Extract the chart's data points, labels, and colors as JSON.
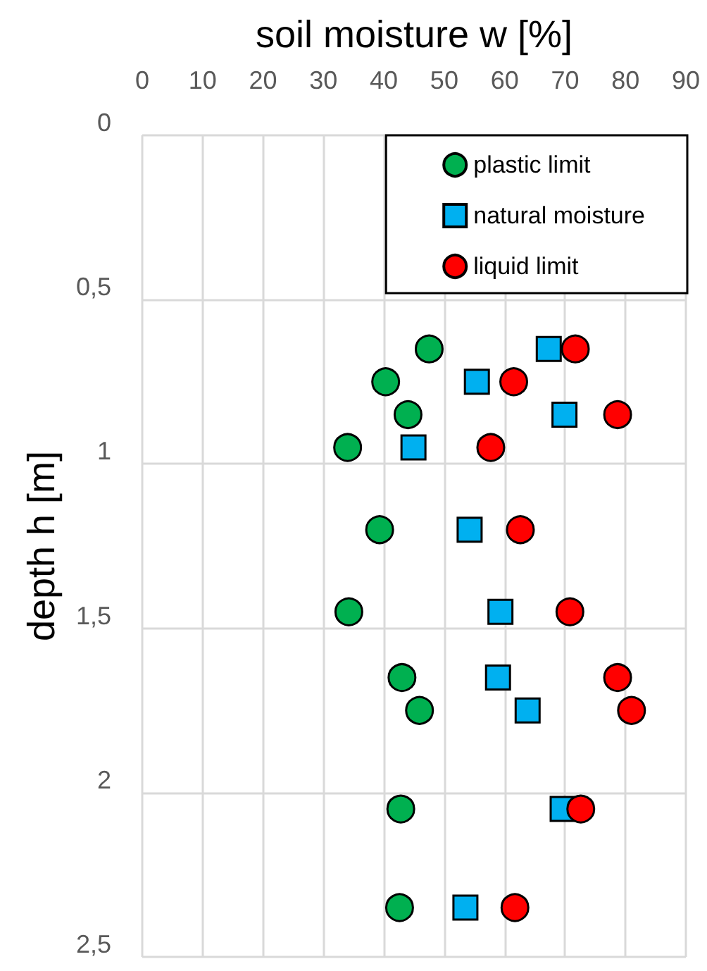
{
  "chart_data": {
    "type": "scatter",
    "xlabel": "soil moisture w [%]",
    "ylabel": "depth h [m]",
    "xlim": [
      0,
      90
    ],
    "xticks": [
      0,
      10,
      20,
      30,
      40,
      50,
      60,
      70,
      80,
      90
    ],
    "ylim": [
      2.5,
      0
    ],
    "yticks": [
      0,
      {
        "value": 0.5,
        "label": "0,5"
      },
      1,
      {
        "value": 1.5,
        "label": "1,5"
      },
      2,
      {
        "value": 2.5,
        "label": "2,5"
      }
    ],
    "grid": true,
    "legend": "top right",
    "series": [
      {
        "name": "plastic limit",
        "color": "#00b050",
        "marker": "circle",
        "x": [
          47.5,
          40.3,
          44,
          34,
          39.3,
          34.2,
          43,
          45.9,
          42.8,
          42.6
        ],
        "values": [
          0.65,
          0.75,
          0.85,
          0.95,
          1.2,
          1.45,
          1.65,
          1.75,
          2.05,
          2.35
        ]
      },
      {
        "name": "natural moisture",
        "color": "#00b0f0",
        "marker": "square",
        "x": [
          67.3,
          55.4,
          69.9,
          44.9,
          54.2,
          59.3,
          58.9,
          63.8,
          69.6,
          53.5
        ],
        "values": [
          0.65,
          0.75,
          0.85,
          0.95,
          1.2,
          1.45,
          1.65,
          1.75,
          2.05,
          2.35
        ]
      },
      {
        "name": "liquid limit",
        "color": "#ff0000",
        "marker": "circle",
        "x": [
          71.7,
          61.5,
          78.7,
          57.7,
          62.6,
          70.8,
          78.7,
          81,
          72.6,
          61.7
        ],
        "values": [
          0.65,
          0.75,
          0.85,
          0.95,
          1.2,
          1.45,
          1.65,
          1.75,
          2.05,
          2.35
        ]
      }
    ]
  }
}
